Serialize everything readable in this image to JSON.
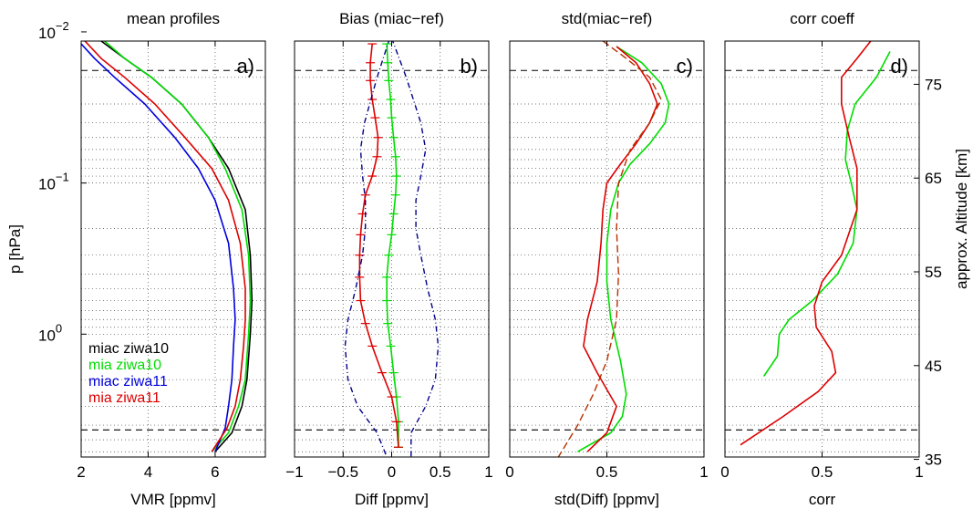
{
  "figure": {
    "y_axis_label": "p   [hPa]",
    "right_axis_label": "approx. Altitude [km]",
    "y_ticks": [
      {
        "p": 0.01,
        "base": "10",
        "exp": "−2"
      },
      {
        "p": 0.1,
        "base": "10",
        "exp": "−1"
      },
      {
        "p": 1,
        "base": "10",
        "exp": "0"
      }
    ],
    "right_ticks": [
      {
        "km": 75,
        "label": "75"
      },
      {
        "km": 65,
        "label": "65"
      },
      {
        "km": 55,
        "label": "55"
      },
      {
        "km": 45,
        "label": "45"
      },
      {
        "km": 35,
        "label": "35"
      }
    ],
    "colors": {
      "miac_ziwa10": "#000000",
      "mia_ziwa10": "#00dd00",
      "miac_ziwa11": "#0000dd",
      "mia_ziwa11": "#dd0000",
      "reference": "#000000",
      "envelope": "#00008b"
    }
  },
  "chart_data": [
    {
      "panel": "a",
      "type": "line",
      "title": "mean profiles",
      "xlabel": "VMR [ppmv]",
      "letter": "a)",
      "xlim": [
        2,
        7.5
      ],
      "ylim_hPa": [
        0.0115,
        6.5
      ],
      "yscale": "log",
      "x_ticks": [
        2,
        4,
        6
      ],
      "x_tick_labels": [
        "2",
        "4",
        "6"
      ],
      "grid": true,
      "ref_lines_hPa": [
        0.018,
        4.3
      ],
      "legend_position": "bottom-left",
      "series": [
        {
          "name": "miac ziwa10",
          "color": "#000000",
          "x": [
            2.6,
            3.3,
            4.1,
            5.0,
            5.8,
            6.4,
            6.9,
            7.05,
            7.1,
            7.05,
            6.95,
            6.8,
            6.5,
            6.0
          ],
          "p_hPa": [
            0.0115,
            0.015,
            0.02,
            0.03,
            0.05,
            0.08,
            0.15,
            0.3,
            0.6,
            1.0,
            2.0,
            3.0,
            4.5,
            6.0
          ]
        },
        {
          "name": "mia ziwa10",
          "color": "#00dd00",
          "x": [
            2.7,
            3.3,
            4.1,
            5.0,
            5.8,
            6.3,
            6.8,
            7.0,
            7.05,
            7.0,
            6.9,
            6.7,
            6.4,
            5.9
          ],
          "p_hPa": [
            0.0115,
            0.015,
            0.02,
            0.03,
            0.05,
            0.08,
            0.15,
            0.3,
            0.6,
            1.0,
            2.0,
            3.0,
            4.5,
            6.0
          ]
        },
        {
          "name": "miac ziwa11",
          "color": "#0000dd",
          "x": [
            2.0,
            2.4,
            3.0,
            3.9,
            4.8,
            5.5,
            6.0,
            6.4,
            6.55,
            6.6,
            6.55,
            6.5,
            6.4,
            6.3,
            6.0
          ],
          "p_hPa": [
            0.012,
            0.015,
            0.02,
            0.03,
            0.05,
            0.08,
            0.13,
            0.25,
            0.5,
            0.8,
            1.2,
            2.0,
            3.0,
            4.2,
            6.0
          ]
        },
        {
          "name": "mia ziwa11",
          "color": "#dd0000",
          "x": [
            2.0,
            2.6,
            3.3,
            4.2,
            5.1,
            5.9,
            6.4,
            6.75,
            6.9,
            6.9,
            6.85,
            6.75,
            6.6,
            6.35,
            5.9
          ],
          "p_hPa": [
            0.0108,
            0.015,
            0.02,
            0.03,
            0.05,
            0.08,
            0.13,
            0.25,
            0.5,
            0.8,
            1.2,
            2.0,
            3.0,
            4.2,
            6.0
          ]
        }
      ]
    },
    {
      "panel": "b",
      "type": "line",
      "title": "Bias (miac−ref)",
      "xlabel": "Diff [ppmv]",
      "letter": "b)",
      "xlim": [
        -1,
        1
      ],
      "ylim_hPa": [
        0.0115,
        6.5
      ],
      "yscale": "log",
      "x_ticks": [
        -1,
        -0.5,
        0,
        0.5,
        1
      ],
      "x_tick_labels": [
        "−1",
        "−0.5",
        "0",
        "0.5",
        "1"
      ],
      "grid": true,
      "ref_lines_hPa": [
        0.018,
        4.3
      ],
      "series": [
        {
          "name": "mia ziwa10",
          "color": "#00dd00",
          "x": [
            -0.05,
            -0.04,
            -0.03,
            -0.01,
            0.0,
            0.02,
            0.04,
            0.05,
            0.04,
            0.02,
            0.0,
            -0.03,
            -0.05,
            -0.05,
            -0.04,
            -0.01,
            0.02,
            0.05,
            0.07,
            0.07
          ],
          "p_hPa": [
            0.012,
            0.016,
            0.021,
            0.028,
            0.037,
            0.05,
            0.067,
            0.09,
            0.12,
            0.16,
            0.22,
            0.3,
            0.42,
            0.6,
            0.85,
            1.2,
            1.8,
            2.6,
            3.8,
            5.6
          ]
        },
        {
          "name": "mia ziwa11",
          "color": "#dd0000",
          "x": [
            -0.2,
            -0.22,
            -0.22,
            -0.2,
            -0.17,
            -0.14,
            -0.15,
            -0.2,
            -0.27,
            -0.3,
            -0.32,
            -0.33,
            -0.33,
            -0.32,
            -0.27,
            -0.2,
            -0.1,
            0.0,
            0.05,
            0.07
          ],
          "p_hPa": [
            0.012,
            0.016,
            0.021,
            0.028,
            0.037,
            0.05,
            0.067,
            0.09,
            0.12,
            0.16,
            0.22,
            0.3,
            0.42,
            0.6,
            0.85,
            1.2,
            1.8,
            2.6,
            3.8,
            5.6
          ]
        },
        {
          "name": "",
          "color": "#00008b",
          "dashed": true,
          "x": [
            0.0,
            0.15,
            0.3,
            0.35,
            0.3,
            0.25,
            0.25,
            0.3,
            0.37,
            0.45,
            0.48,
            0.45,
            0.35,
            0.2,
            0.2
          ],
          "p_hPa": [
            0.011,
            0.02,
            0.04,
            0.06,
            0.09,
            0.13,
            0.2,
            0.3,
            0.5,
            0.8,
            1.2,
            2.0,
            3.0,
            4.5,
            6.5
          ]
        },
        {
          "name": "",
          "color": "#00008b",
          "dashed": true,
          "x": [
            -0.02,
            -0.15,
            -0.28,
            -0.32,
            -0.3,
            -0.27,
            -0.27,
            -0.3,
            -0.37,
            -0.45,
            -0.48,
            -0.45,
            -0.35,
            -0.15,
            -0.05
          ],
          "p_hPa": [
            0.011,
            0.02,
            0.04,
            0.06,
            0.09,
            0.13,
            0.2,
            0.3,
            0.5,
            0.8,
            1.2,
            2.0,
            3.0,
            4.5,
            6.5
          ]
        }
      ]
    },
    {
      "panel": "c",
      "type": "line",
      "title": "std(miac−ref)",
      "xlabel": "std(Diff) [ppmv]",
      "letter": "c)",
      "xlim": [
        0,
        1
      ],
      "ylim_hPa": [
        0.0115,
        6.5
      ],
      "yscale": "log",
      "x_ticks": [
        0,
        0.5,
        1
      ],
      "x_tick_labels": [
        "0",
        "0.5",
        "1"
      ],
      "grid": true,
      "ref_lines_hPa": [
        0.018,
        4.3
      ],
      "series": [
        {
          "name": "mia ziwa10",
          "color": "#00dd00",
          "x": [
            0.55,
            0.68,
            0.78,
            0.82,
            0.8,
            0.72,
            0.62,
            0.56,
            0.52,
            0.5,
            0.5,
            0.52,
            0.57,
            0.6,
            0.58,
            0.52,
            0.35
          ],
          "p_hPa": [
            0.0125,
            0.016,
            0.022,
            0.03,
            0.04,
            0.055,
            0.075,
            0.1,
            0.15,
            0.25,
            0.45,
            0.8,
            1.5,
            2.5,
            3.5,
            4.5,
            6.0
          ]
        },
        {
          "name": "mia ziwa11",
          "color": "#dd0000",
          "x": [
            0.55,
            0.65,
            0.72,
            0.76,
            0.72,
            0.65,
            0.57,
            0.5,
            0.48,
            0.47,
            0.45,
            0.4,
            0.38,
            0.45,
            0.55,
            0.5,
            0.4
          ],
          "p_hPa": [
            0.0125,
            0.016,
            0.022,
            0.03,
            0.04,
            0.055,
            0.075,
            0.1,
            0.15,
            0.25,
            0.45,
            0.8,
            1.2,
            1.8,
            3.0,
            4.5,
            6.0
          ]
        },
        {
          "name": "",
          "color": "#b83000",
          "dashed": true,
          "x": [
            0.48,
            0.6,
            0.72,
            0.78,
            0.72,
            0.62,
            0.56,
            0.55,
            0.56,
            0.55,
            0.5,
            0.43,
            0.35,
            0.25
          ],
          "p_hPa": [
            0.0115,
            0.015,
            0.02,
            0.028,
            0.04,
            0.06,
            0.1,
            0.2,
            0.4,
            0.8,
            1.5,
            2.5,
            4.0,
            6.5
          ]
        }
      ]
    },
    {
      "panel": "d",
      "type": "line",
      "title": "corr coeff",
      "xlabel": "corr",
      "letter": "d)",
      "xlim": [
        0,
        1
      ],
      "ylim_hPa": [
        0.0115,
        6.5
      ],
      "yscale": "log",
      "x_ticks": [
        0,
        0.5,
        1
      ],
      "x_tick_labels": [
        "0",
        "0.5",
        "1"
      ],
      "grid": true,
      "ref_lines_hPa": [
        0.018,
        4.3
      ],
      "series": [
        {
          "name": "mia ziwa10",
          "color": "#00dd00",
          "x": [
            0.85,
            0.78,
            0.67,
            0.63,
            0.62,
            0.65,
            0.68,
            0.66,
            0.58,
            0.45,
            0.33,
            0.28,
            0.27,
            0.2
          ],
          "p_hPa": [
            0.0135,
            0.02,
            0.03,
            0.045,
            0.07,
            0.1,
            0.15,
            0.25,
            0.4,
            0.6,
            0.8,
            1.0,
            1.4,
            1.9
          ]
        },
        {
          "name": "mia ziwa11",
          "color": "#dd0000",
          "x": [
            0.75,
            0.68,
            0.6,
            0.6,
            0.64,
            0.68,
            0.68,
            0.6,
            0.5,
            0.46,
            0.47,
            0.55,
            0.57,
            0.48,
            0.3,
            0.08
          ],
          "p_hPa": [
            0.0115,
            0.015,
            0.02,
            0.03,
            0.05,
            0.08,
            0.15,
            0.3,
            0.45,
            0.65,
            0.9,
            1.3,
            1.8,
            2.4,
            3.5,
            5.4
          ]
        }
      ]
    }
  ]
}
